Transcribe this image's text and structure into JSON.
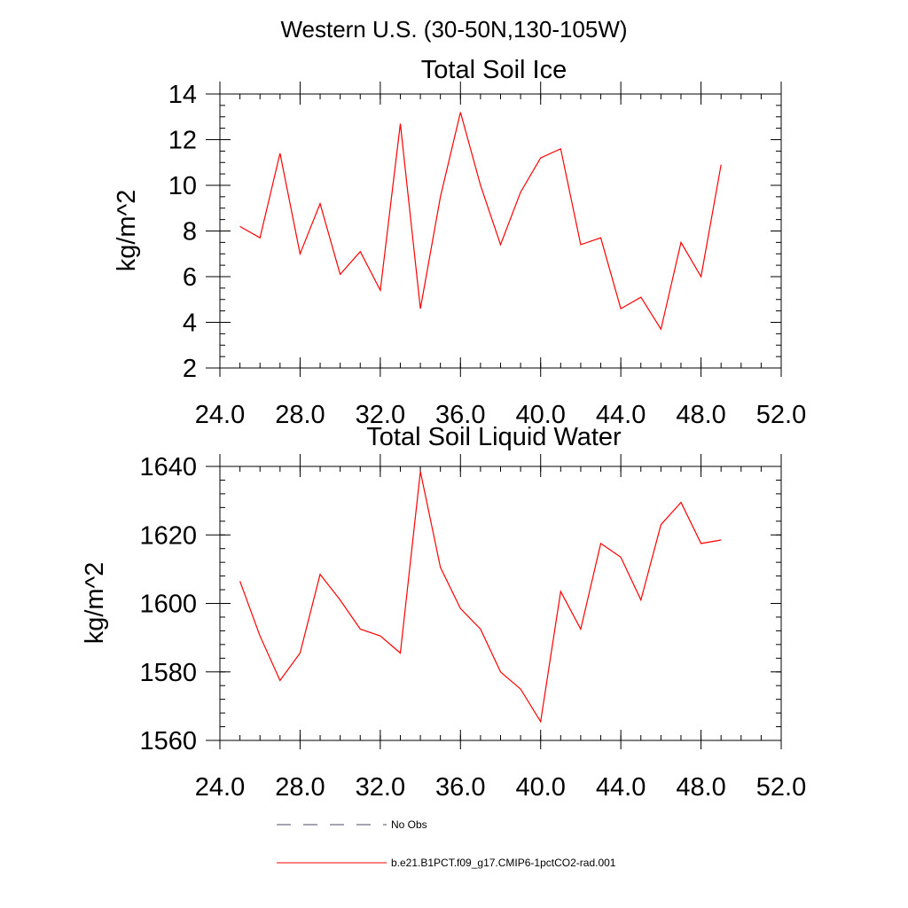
{
  "suptitle": "Western U.S. (30-50N,130-105W)",
  "legend": {
    "entries": [
      {
        "label": "No Obs",
        "style": "dashed",
        "color": "#4a4a6a"
      },
      {
        "label": "b.e21.B1PCT.f09_g17.CMIP6-1pctCO2-rad.001",
        "style": "solid",
        "color": "#ff0000"
      }
    ]
  },
  "chart_data": [
    {
      "type": "line",
      "title": "Total Soil Ice",
      "xlabel": "",
      "ylabel": "kg/m^2",
      "xlim": [
        24,
        52
      ],
      "ylim": [
        2,
        14
      ],
      "xticks": [
        24,
        28,
        32,
        36,
        40,
        44,
        48,
        52
      ],
      "xtick_labels": [
        "24.0",
        "28.0",
        "32.0",
        "36.0",
        "40.0",
        "44.0",
        "48.0",
        "52.0"
      ],
      "yticks": [
        2,
        4,
        6,
        8,
        10,
        12,
        14
      ],
      "ytick_labels": [
        "2",
        "4",
        "6",
        "8",
        "10",
        "12",
        "14"
      ],
      "yminor_step": 0.5,
      "xminor_step": 1,
      "grid": false,
      "series": [
        {
          "color": "#ff0000",
          "x": [
            25,
            26,
            27,
            28,
            29,
            30,
            31,
            32,
            33,
            34,
            35,
            36,
            37,
            38,
            39,
            40,
            41,
            42,
            43,
            44,
            45,
            46,
            47,
            48,
            49
          ],
          "values": [
            8.2,
            7.7,
            11.4,
            7.0,
            9.2,
            6.1,
            7.1,
            5.4,
            12.7,
            4.6,
            9.5,
            13.2,
            10.0,
            7.4,
            9.7,
            11.2,
            11.6,
            7.4,
            7.7,
            4.6,
            5.1,
            3.7,
            7.5,
            6.0,
            10.9
          ]
        }
      ]
    },
    {
      "type": "line",
      "title": "Total Soil Liquid Water",
      "xlabel": "",
      "ylabel": "kg/m^2",
      "xlim": [
        24,
        52
      ],
      "ylim": [
        1560,
        1640
      ],
      "xticks": [
        24,
        28,
        32,
        36,
        40,
        44,
        48,
        52
      ],
      "xtick_labels": [
        "24.0",
        "28.0",
        "32.0",
        "36.0",
        "40.0",
        "44.0",
        "48.0",
        "52.0"
      ],
      "yticks": [
        1560,
        1580,
        1600,
        1620,
        1640
      ],
      "ytick_labels": [
        "1560",
        "1580",
        "1600",
        "1620",
        "1640"
      ],
      "yminor_step": 4,
      "xminor_step": 1,
      "grid": false,
      "series": [
        {
          "color": "#ff0000",
          "x": [
            25,
            26,
            27,
            28,
            29,
            30,
            31,
            32,
            33,
            34,
            35,
            36,
            37,
            38,
            39,
            40,
            41,
            42,
            43,
            44,
            45,
            46,
            47,
            48,
            49
          ],
          "values": [
            1606.5,
            1590.5,
            1577.5,
            1585.5,
            1608.5,
            1601.0,
            1592.5,
            1590.5,
            1585.5,
            1638.5,
            1610.5,
            1598.5,
            1592.5,
            1580.0,
            1575.0,
            1565.5,
            1603.5,
            1592.5,
            1617.5,
            1613.5,
            1601.0,
            1623.0,
            1629.5,
            1617.5,
            1618.5
          ]
        }
      ]
    }
  ]
}
